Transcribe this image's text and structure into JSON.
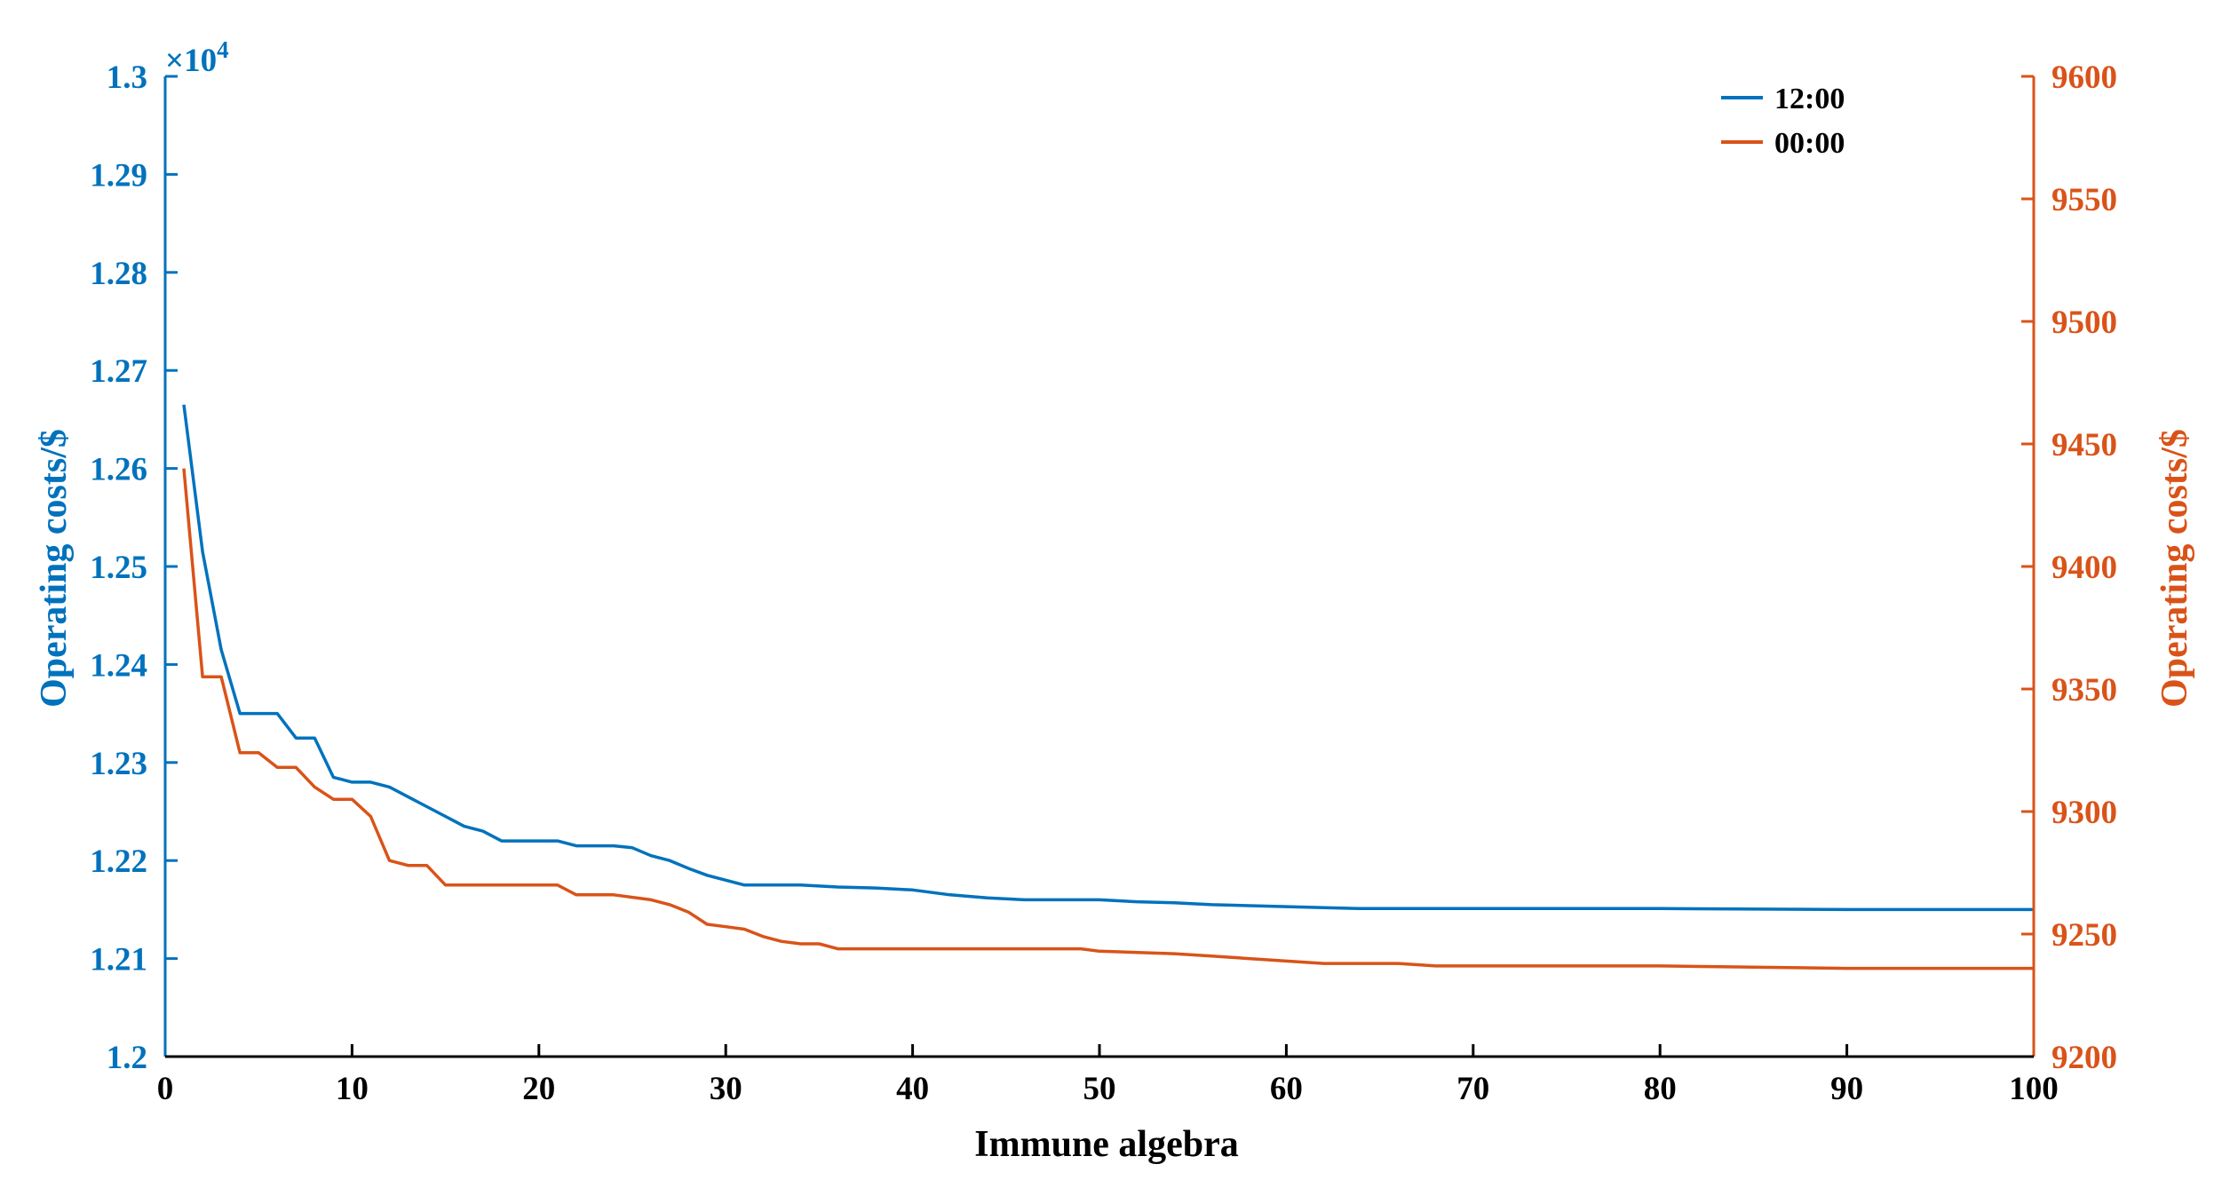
{
  "chart_data": {
    "type": "line",
    "xlabel": "Immune algebra",
    "xlim": [
      0,
      100
    ],
    "xticks": [
      0,
      10,
      20,
      30,
      40,
      50,
      60,
      70,
      80,
      90,
      100
    ],
    "left_axis": {
      "label": "Operating costs/$",
      "exponent_label": "×10",
      "exponent_power": "4",
      "ylim": [
        1.2,
        1.3
      ],
      "ticks": [
        "1.2",
        "1.21",
        "1.22",
        "1.23",
        "1.24",
        "1.25",
        "1.26",
        "1.27",
        "1.28",
        "1.29",
        "1.3"
      ],
      "color": "#0072BD"
    },
    "right_axis": {
      "label": "Operating costs/$",
      "ylim": [
        9200,
        9600
      ],
      "ticks": [
        "9200",
        "9250",
        "9300",
        "9350",
        "9400",
        "9450",
        "9500",
        "9550",
        "9600"
      ],
      "color": "#D95319"
    },
    "legend_position": "top-right",
    "grid": false,
    "series": [
      {
        "name": "12:00",
        "axis": "left",
        "color": "#0072BD",
        "x": [
          1,
          2,
          3,
          4,
          5,
          6,
          7,
          8,
          9,
          10,
          11,
          12,
          13,
          14,
          15,
          16,
          17,
          18,
          19,
          20,
          21,
          22,
          23,
          24,
          25,
          26,
          27,
          28,
          29,
          30,
          31,
          32,
          34,
          36,
          38,
          40,
          42,
          44,
          46,
          48,
          50,
          52,
          54,
          56,
          58,
          60,
          62,
          64,
          70,
          80,
          90,
          100
        ],
        "y": [
          1.2665,
          1.2515,
          1.2415,
          1.235,
          1.235,
          1.235,
          1.2325,
          1.2325,
          1.2285,
          1.228,
          1.228,
          1.2275,
          1.2265,
          1.2255,
          1.2245,
          1.2235,
          1.223,
          1.222,
          1.222,
          1.222,
          1.222,
          1.2215,
          1.2215,
          1.2215,
          1.2213,
          1.2205,
          1.22,
          1.2192,
          1.2185,
          1.218,
          1.2175,
          1.2175,
          1.2175,
          1.2173,
          1.2172,
          1.217,
          1.2165,
          1.2162,
          1.216,
          1.216,
          1.216,
          1.2158,
          1.2157,
          1.2155,
          1.2154,
          1.2153,
          1.2152,
          1.2151,
          1.2151,
          1.2151,
          1.215,
          1.215
        ]
      },
      {
        "name": "00:00",
        "axis": "right",
        "color": "#D95319",
        "x": [
          1,
          2,
          3,
          4,
          5,
          6,
          7,
          8,
          9,
          10,
          11,
          12,
          13,
          14,
          15,
          16,
          18,
          20,
          21,
          22,
          24,
          26,
          27,
          28,
          29,
          30,
          31,
          32,
          33,
          34,
          35,
          36,
          40,
          45,
          49,
          50,
          54,
          56,
          58,
          60,
          62,
          64,
          66,
          68,
          70,
          75,
          80,
          90,
          100
        ],
        "y": [
          9440,
          9355,
          9355,
          9324,
          9324,
          9318,
          9318,
          9310,
          9305,
          9305,
          9298,
          9280,
          9278,
          9278,
          9270,
          9270,
          9270,
          9270,
          9270,
          9266,
          9266,
          9264,
          9262,
          9259,
          9254,
          9253,
          9252,
          9249,
          9247,
          9246,
          9246,
          9244,
          9244,
          9244,
          9244,
          9243,
          9242,
          9241,
          9240,
          9239,
          9238,
          9238,
          9238,
          9237,
          9237,
          9237,
          9237,
          9236,
          9236
        ]
      }
    ]
  }
}
